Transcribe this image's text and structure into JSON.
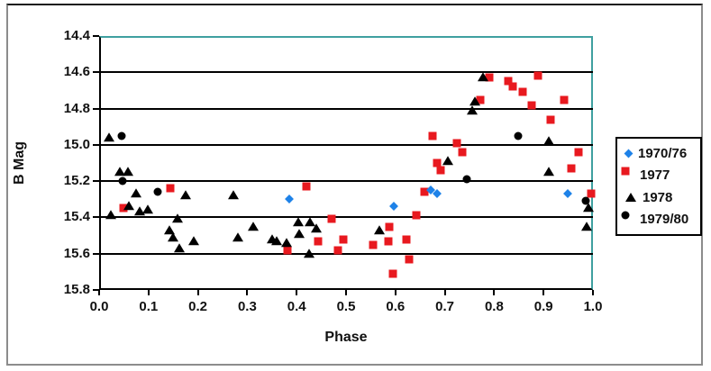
{
  "figure": {
    "background": "#ffffff",
    "frame_border_color": "#8c8c8c",
    "frame_border_top_color": "#1b1b1b"
  },
  "chart_data": {
    "type": "scatter",
    "title": "",
    "xlabel": "Phase",
    "ylabel": "B Mag",
    "xlim": [
      0.0,
      1.0
    ],
    "ylim": [
      15.8,
      14.4
    ],
    "y_inverted": true,
    "grid": "horizontal",
    "legend_position": "right",
    "plot_border_color": "#3fa0a0",
    "axis_color": "#000000",
    "x_tick_labels": [
      "0.0",
      "0.1",
      "0.2",
      "0.3",
      "0.4",
      "0.5",
      "0.6",
      "0.7",
      "0.8",
      "0.9",
      "1.0"
    ],
    "y_tick_labels": [
      "14.4",
      "14.6",
      "14.8",
      "15.0",
      "15.2",
      "15.4",
      "15.6",
      "15.8"
    ],
    "series": [
      {
        "name": "1970/76",
        "marker": "diamond",
        "color": "#1e82e8",
        "points": [
          [
            0.385,
            15.3
          ],
          [
            0.597,
            15.34
          ],
          [
            0.671,
            15.25
          ],
          [
            0.684,
            15.27
          ],
          [
            0.948,
            15.27
          ]
        ]
      },
      {
        "name": "1977",
        "marker": "square",
        "color": "#e8191f",
        "points": [
          [
            0.049,
            15.35
          ],
          [
            0.144,
            15.24
          ],
          [
            0.381,
            15.58
          ],
          [
            0.419,
            15.23
          ],
          [
            0.444,
            15.53
          ],
          [
            0.471,
            15.41
          ],
          [
            0.483,
            15.58
          ],
          [
            0.494,
            15.52
          ],
          [
            0.555,
            15.55
          ],
          [
            0.585,
            15.53
          ],
          [
            0.588,
            15.45
          ],
          [
            0.594,
            15.71
          ],
          [
            0.623,
            15.52
          ],
          [
            0.628,
            15.63
          ],
          [
            0.642,
            15.39
          ],
          [
            0.658,
            15.26
          ],
          [
            0.675,
            14.95
          ],
          [
            0.684,
            15.1
          ],
          [
            0.691,
            15.14
          ],
          [
            0.724,
            14.99
          ],
          [
            0.735,
            15.04
          ],
          [
            0.771,
            14.75
          ],
          [
            0.791,
            14.63
          ],
          [
            0.829,
            14.65
          ],
          [
            0.838,
            14.68
          ],
          [
            0.858,
            14.71
          ],
          [
            0.875,
            14.78
          ],
          [
            0.889,
            14.62
          ],
          [
            0.915,
            14.86
          ],
          [
            0.942,
            14.75
          ],
          [
            0.956,
            15.13
          ],
          [
            0.971,
            15.04
          ],
          [
            0.996,
            15.27
          ]
        ]
      },
      {
        "name": "1978",
        "marker": "triangle",
        "color": "#000000",
        "points": [
          [
            0.02,
            14.96
          ],
          [
            0.024,
            15.39
          ],
          [
            0.042,
            15.15
          ],
          [
            0.059,
            15.15
          ],
          [
            0.06,
            15.34
          ],
          [
            0.075,
            15.27
          ],
          [
            0.082,
            15.37
          ],
          [
            0.099,
            15.36
          ],
          [
            0.142,
            15.47
          ],
          [
            0.149,
            15.51
          ],
          [
            0.158,
            15.41
          ],
          [
            0.162,
            15.57
          ],
          [
            0.176,
            15.28
          ],
          [
            0.191,
            15.53
          ],
          [
            0.271,
            15.28
          ],
          [
            0.281,
            15.51
          ],
          [
            0.312,
            15.45
          ],
          [
            0.351,
            15.52
          ],
          [
            0.36,
            15.53
          ],
          [
            0.379,
            15.54
          ],
          [
            0.403,
            15.43
          ],
          [
            0.406,
            15.49
          ],
          [
            0.425,
            15.6
          ],
          [
            0.427,
            15.43
          ],
          [
            0.44,
            15.46
          ],
          [
            0.567,
            15.47
          ],
          [
            0.706,
            15.09
          ],
          [
            0.755,
            14.81
          ],
          [
            0.761,
            14.76
          ],
          [
            0.777,
            14.63
          ],
          [
            0.911,
            14.98
          ],
          [
            0.911,
            15.15
          ],
          [
            0.987,
            15.45
          ],
          [
            0.991,
            15.35
          ]
        ]
      },
      {
        "name": "1979/80",
        "marker": "circle",
        "color": "#000000",
        "points": [
          [
            0.045,
            14.95
          ],
          [
            0.048,
            15.2
          ],
          [
            0.118,
            15.26
          ],
          [
            0.744,
            15.19
          ],
          [
            0.848,
            14.95
          ],
          [
            0.985,
            15.31
          ]
        ]
      }
    ]
  }
}
